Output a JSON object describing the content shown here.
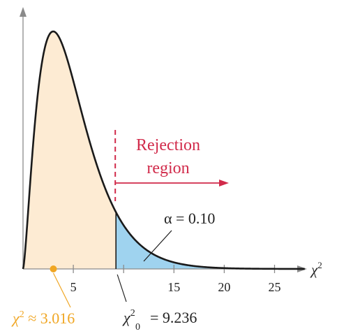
{
  "colors": {
    "axis": "#8a8a8a",
    "curve": "#1a1a1a",
    "left_fill": "#fdebd3",
    "tail_fill": "#9fd3ef",
    "rejection": "#d12a4a",
    "statistic": "#f0a623",
    "text": "#222222"
  },
  "chart_data": {
    "type": "area",
    "distribution": "chi-square",
    "degrees_of_freedom": 5,
    "xlabel_base": "χ",
    "xlabel_exp": "2",
    "xlim": [
      0,
      28
    ],
    "ticks": [
      {
        "value": 5,
        "label": "5"
      },
      {
        "value": 10,
        "label": ""
      },
      {
        "value": 15,
        "label": "15"
      },
      {
        "value": 20,
        "label": "20"
      },
      {
        "value": 25,
        "label": "25"
      }
    ],
    "critical_value": 9.236,
    "test_statistic": 3.016,
    "alpha": 0.1,
    "rejection_label_line1": "Rejection",
    "rejection_label_line2": "region",
    "alpha_label": "α = 0.10",
    "statistic_label_base": "χ",
    "statistic_label_exp": "2",
    "statistic_label_rest": " ≈ 3.016",
    "critical_label_base": "χ",
    "critical_label_exp": "2",
    "critical_label_sub": "0",
    "critical_label_rest": "= 9.236"
  }
}
